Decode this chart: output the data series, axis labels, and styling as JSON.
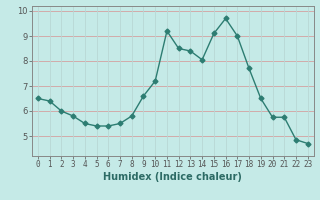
{
  "x": [
    0,
    1,
    2,
    3,
    4,
    5,
    6,
    7,
    8,
    9,
    10,
    11,
    12,
    13,
    14,
    15,
    16,
    17,
    18,
    19,
    20,
    21,
    22,
    23
  ],
  "y": [
    6.5,
    6.4,
    6.0,
    5.8,
    5.5,
    5.4,
    5.4,
    5.5,
    5.8,
    6.6,
    7.2,
    9.2,
    8.5,
    8.4,
    8.05,
    9.1,
    9.7,
    9.0,
    7.7,
    6.5,
    5.75,
    5.75,
    4.85,
    4.7
  ],
  "line_color": "#2d7d72",
  "marker": "D",
  "marker_size": 2.5,
  "bg_color": "#c5eae7",
  "grid_color_h": "#d4a0a0",
  "grid_color_v": "#b8d8d5",
  "xlabel": "Humidex (Indice chaleur)",
  "ylim": [
    4.2,
    10.2
  ],
  "xlim": [
    -0.5,
    23.5
  ],
  "yticks": [
    5,
    6,
    7,
    8,
    9,
    10
  ],
  "xticks": [
    0,
    1,
    2,
    3,
    4,
    5,
    6,
    7,
    8,
    9,
    10,
    11,
    12,
    13,
    14,
    15,
    16,
    17,
    18,
    19,
    20,
    21,
    22,
    23
  ],
  "xlabel_fontsize": 7,
  "tick_fontsize": 5.5
}
